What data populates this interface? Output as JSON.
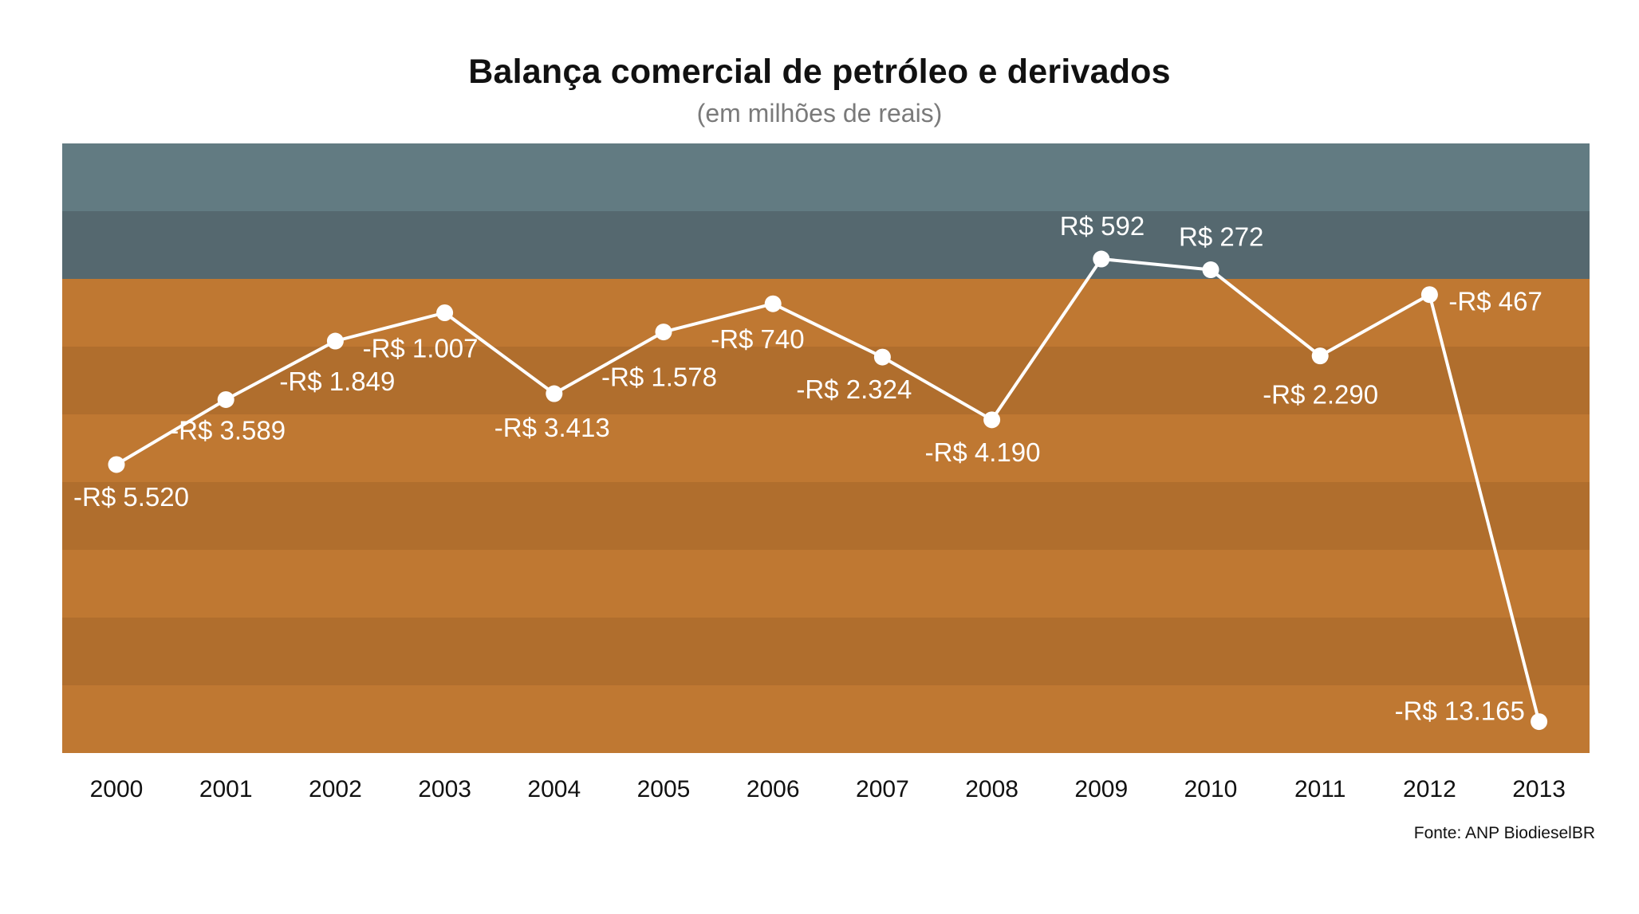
{
  "title": "Balança comercial de petróleo e derivados",
  "subtitle": "(em milhões de reais)",
  "source": "Fonte: ANP BiodieselBR",
  "colors": {
    "band_positive_light": "#627b82",
    "band_positive_dark": "#55686f",
    "band_negative_light": "#bf7832",
    "band_negative_dark": "#b06e2d",
    "line": "#ffffff",
    "text": "#111111",
    "subtitle": "#7a7a7a"
  },
  "chart_data": {
    "type": "line",
    "title": "Balança comercial de petróleo e derivados",
    "subtitle": "(em milhões de reais)",
    "xlabel": "",
    "ylabel": "",
    "categories": [
      "2000",
      "2001",
      "2002",
      "2003",
      "2004",
      "2005",
      "2006",
      "2007",
      "2008",
      "2009",
      "2010",
      "2011",
      "2012",
      "2013"
    ],
    "series": [
      {
        "values": [
          -5520,
          -3589,
          -1849,
          -1007,
          -3413,
          -1578,
          -740,
          -2324,
          -4190,
          592,
          272,
          -2290,
          -467,
          -13165
        ],
        "labels": [
          "-R$ 5.520",
          "-R$ 3.589",
          "-R$ 1.849",
          "-R$ 1.007",
          "-R$ 3.413",
          "-R$ 1.578",
          "-R$ 740",
          "-R$ 2.324",
          "-R$ 4.190",
          "R$ 592",
          "R$ 272",
          "-R$ 2.290",
          "-R$ 467",
          "-R$ 13.165"
        ]
      }
    ],
    "background_bands": "upper two bands above zero in blue-gray, lower bands below zero in orange",
    "grid": false,
    "legend": "none"
  }
}
